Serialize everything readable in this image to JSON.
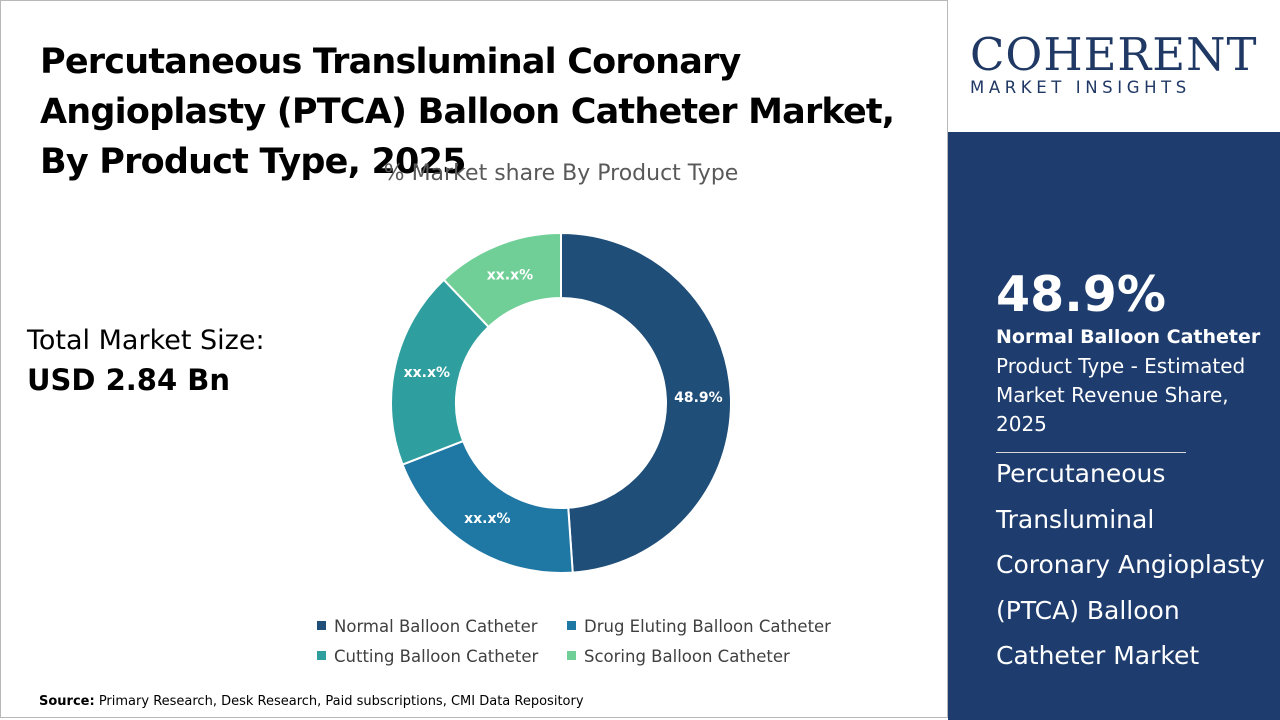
{
  "header": {
    "title": "Percutaneous Transluminal Coronary Angioplasty (PTCA) Balloon Catheter Market, By Product Type, 2025"
  },
  "market_size": {
    "label": "Total Market Size:",
    "value": "USD 2.84 Bn"
  },
  "source": {
    "label": "Source:",
    "text": " Primary Research, Desk Research, Paid subscriptions, CMI Data Repository"
  },
  "logo": {
    "top": "COHERENT",
    "bottom": "MARKET INSIGHTS"
  },
  "highlight": {
    "value": "48.9%",
    "name": "Normal Balloon Catheter",
    "description": "Product Type - Estimated Market Revenue Share, 2025",
    "market": "Percutaneous Transluminal Coronary Angioplasty (PTCA) Balloon Catheter Market"
  },
  "colors": {
    "accent": "#1e3d6e",
    "logo": "#1f3864"
  },
  "chart_data": {
    "type": "pie",
    "title": "% Market share By Product Type",
    "categories": [
      "Normal Balloon Catheter",
      "Drug Eluting Balloon Catheter",
      "Cutting Balloon Catheter",
      "Scoring Balloon Catheter"
    ],
    "values": [
      48.9,
      20.2,
      18.8,
      12.1
    ],
    "labels": [
      "48.9%",
      "xx.x%",
      "xx.x%",
      "xx.x%"
    ],
    "colors": [
      "#1f4e79",
      "#1f77a4",
      "#2e9e9e",
      "#6fcf97"
    ],
    "legend_position": "bottom",
    "donut": true
  }
}
